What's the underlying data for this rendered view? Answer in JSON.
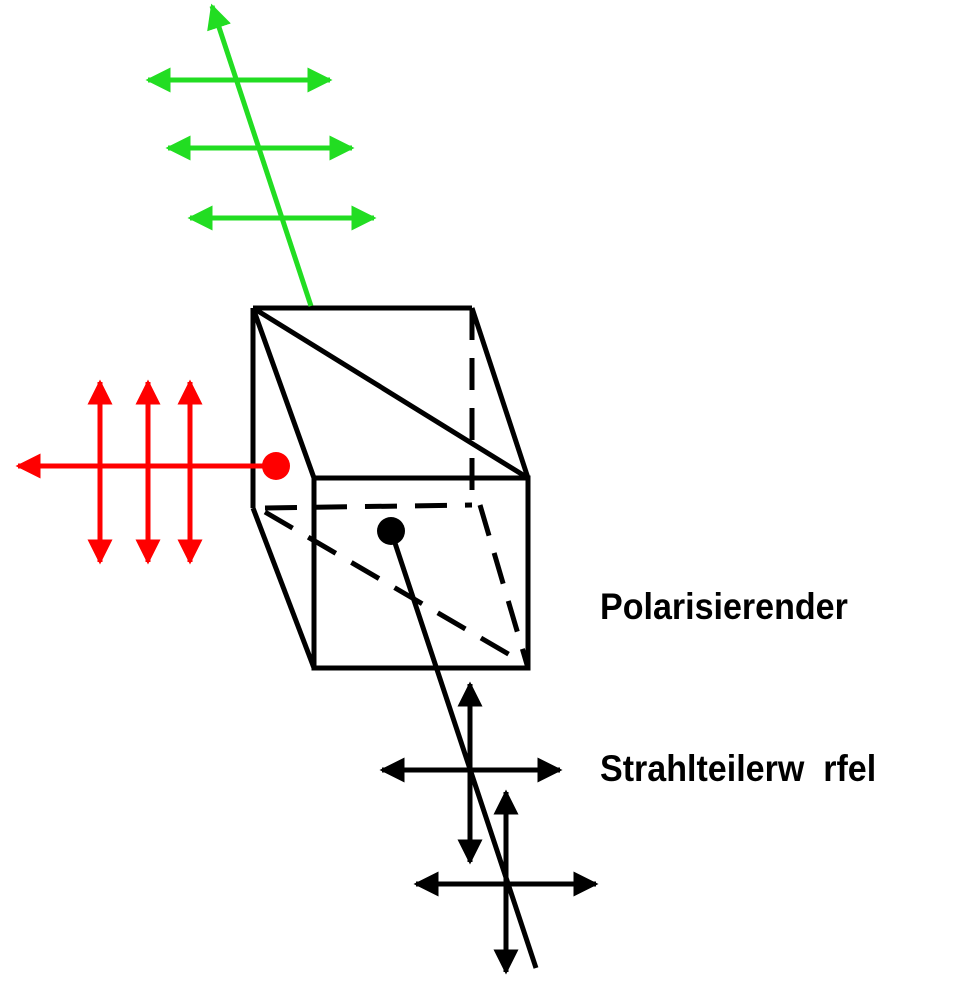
{
  "caption": {
    "line1": "Polarisierender",
    "line2": "Strahlteilerw  rfel"
  },
  "colors": {
    "transmitted_beam": "#22dd22",
    "reflected_beam": "#ff0000",
    "incident_beam": "#000000",
    "cube_edges": "#000000",
    "background": "#ffffff"
  },
  "elements": {
    "cube": "beam-splitter-cube",
    "green_beam": "transmitted-p-polarized",
    "red_beam": "reflected-s-polarized",
    "black_beam": "incident-unpolarized"
  }
}
